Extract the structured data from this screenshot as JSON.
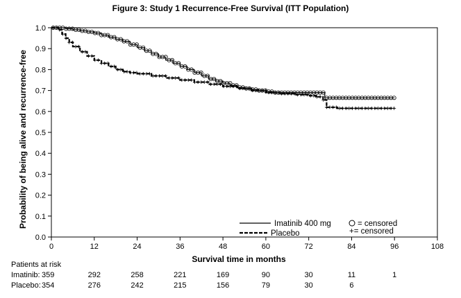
{
  "figure_title": "Figure 3: Study 1 Recurrence-Free Survival (ITT Population)",
  "chart_data": {
    "type": "line",
    "title": "Figure 3: Study 1 Recurrence-Free Survival (ITT Population)",
    "xlabel": "Survival time in months",
    "ylabel": "Probability of being alive and recurrence-free",
    "xlim": [
      0,
      108
    ],
    "ylim": [
      0.0,
      1.0
    ],
    "x_ticks": [
      0,
      12,
      24,
      36,
      48,
      60,
      72,
      84,
      96,
      108
    ],
    "y_ticks": [
      0.0,
      0.1,
      0.2,
      0.3,
      0.4,
      0.5,
      0.6,
      0.7,
      0.8,
      0.9,
      1.0
    ],
    "y_tick_labels": [
      "0.0",
      "0.1",
      "0.2",
      "0.3",
      "0.4",
      "0.5",
      "0.6",
      "0.7",
      "0.8",
      "0.9",
      "1.0"
    ],
    "legend_position": "bottom-right",
    "series": [
      {
        "name": "Imatinib 400 mg",
        "line_style": "solid",
        "censor_symbol": "circle",
        "x": [
          0,
          2,
          4,
          6,
          8,
          10,
          12,
          14,
          16,
          18,
          20,
          22,
          24,
          26,
          28,
          30,
          32,
          34,
          36,
          38,
          40,
          42,
          44,
          46,
          48,
          50,
          52,
          54,
          56,
          58,
          60,
          62,
          64,
          66,
          68,
          70,
          72,
          76,
          76.5,
          80,
          84,
          88,
          92,
          96
        ],
        "y": [
          1.0,
          1.0,
          0.995,
          0.99,
          0.985,
          0.98,
          0.975,
          0.965,
          0.955,
          0.945,
          0.935,
          0.92,
          0.905,
          0.89,
          0.875,
          0.86,
          0.845,
          0.83,
          0.815,
          0.8,
          0.785,
          0.77,
          0.755,
          0.745,
          0.735,
          0.725,
          0.715,
          0.71,
          0.705,
          0.7,
          0.695,
          0.69,
          0.69,
          0.69,
          0.69,
          0.69,
          0.69,
          0.69,
          0.665,
          0.665,
          0.665,
          0.665,
          0.665,
          0.665
        ]
      },
      {
        "name": "Placebo",
        "line_style": "dashed",
        "censor_symbol": "plus",
        "x": [
          0,
          2,
          3,
          4,
          5,
          6,
          8,
          10,
          12,
          14,
          16,
          18,
          20,
          22,
          24,
          28,
          32,
          36,
          40,
          44,
          48,
          52,
          56,
          60,
          64,
          68,
          72,
          74,
          76,
          77,
          80,
          84,
          88,
          92,
          96
        ],
        "y": [
          1.0,
          0.99,
          0.97,
          0.95,
          0.93,
          0.91,
          0.885,
          0.865,
          0.845,
          0.83,
          0.815,
          0.8,
          0.79,
          0.785,
          0.78,
          0.77,
          0.76,
          0.75,
          0.74,
          0.73,
          0.72,
          0.71,
          0.7,
          0.69,
          0.685,
          0.68,
          0.675,
          0.67,
          0.655,
          0.62,
          0.615,
          0.615,
          0.615,
          0.615,
          0.615
        ]
      }
    ],
    "legend": {
      "entries": [
        "Imatinib 400 mg",
        "Placebo"
      ],
      "censor_notes": [
        "= censored",
        "+= censored"
      ]
    },
    "patients_at_risk": {
      "heading": "Patients at risk",
      "rows": [
        {
          "label": "Imatinib:",
          "values": [
            "359",
            "292",
            "258",
            "221",
            "169",
            "90",
            "30",
            "11",
            "1"
          ]
        },
        {
          "label": "Placebo:",
          "values": [
            "354",
            "276",
            "242",
            "215",
            "156",
            "79",
            "30",
            "6"
          ]
        }
      ]
    }
  }
}
